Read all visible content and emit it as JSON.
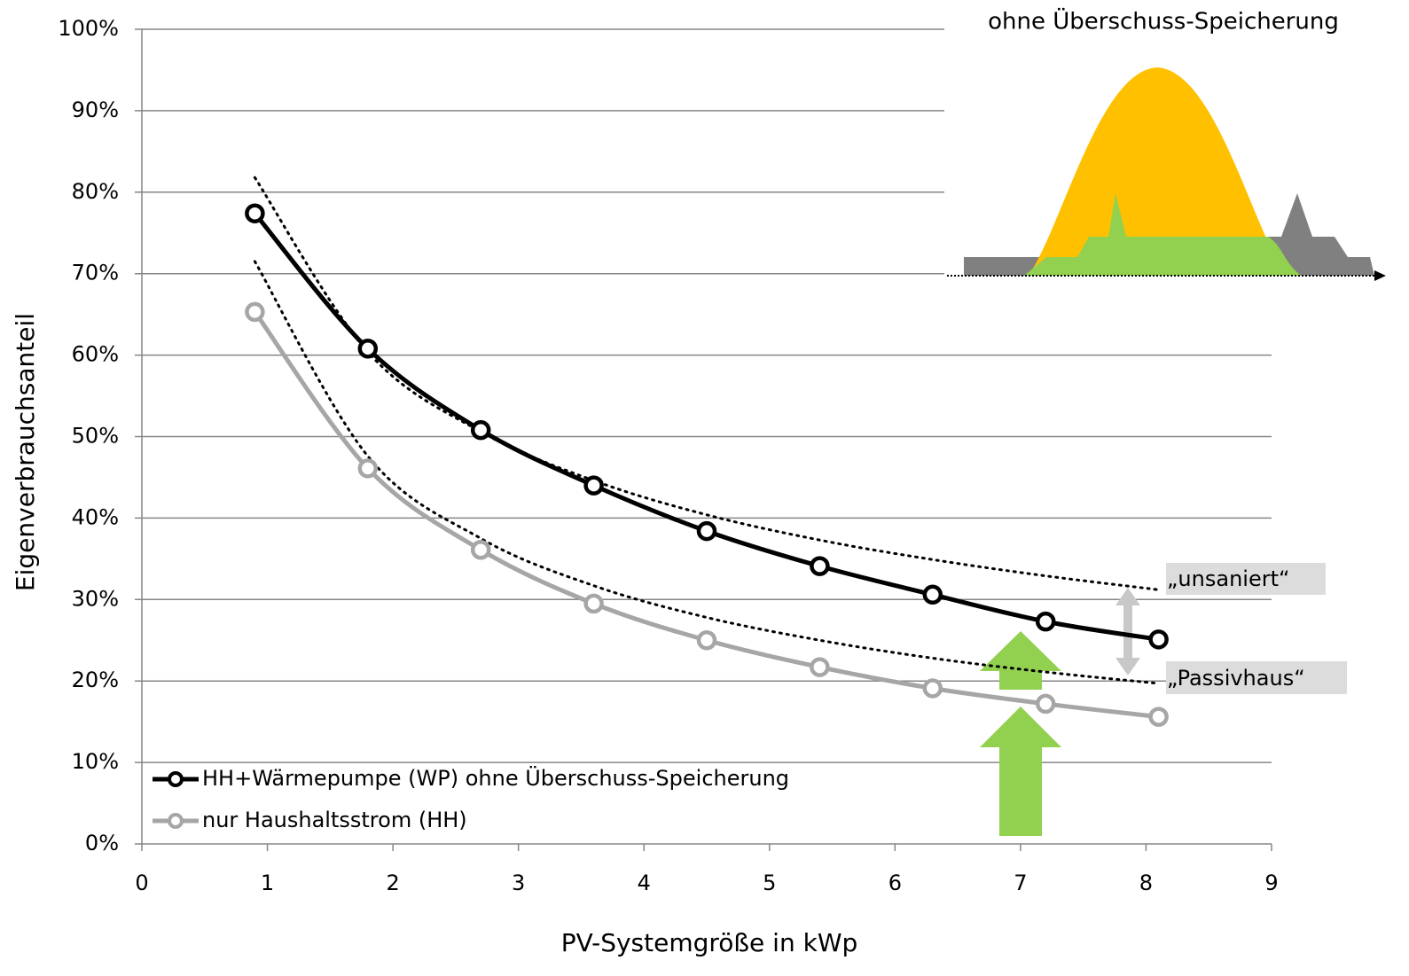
{
  "chart_data": {
    "type": "line",
    "inset_title": "ohne Überschuss-Speicherung",
    "x_label": "PV-Systemgröße in kWp",
    "y_label": "Eigenverbrauchsanteil",
    "x": [
      0.9,
      1.8,
      2.7,
      3.6,
      4.5,
      5.4,
      6.3,
      7.2,
      8.1
    ],
    "series": [
      {
        "name": "HH+Wärmepumpe (WP) ohne Überschuss-Speicherung",
        "color": "#000000",
        "values": [
          77.4,
          60.8,
          50.8,
          44.0,
          38.4,
          34.1,
          30.6,
          27.3,
          25.1
        ]
      },
      {
        "name": "nur Haushaltsstrom (HH)",
        "color": "#a6a6a6",
        "values": [
          65.3,
          46.1,
          36.1,
          29.5,
          25.0,
          21.7,
          19.1,
          17.2,
          15.6
        ]
      }
    ],
    "reference_lines": [
      {
        "color": "#000000",
        "style": "dotted",
        "values": [
          81.8,
          60.4,
          50.6,
          44.6,
          40.4,
          37.3,
          34.9,
          32.9,
          31.2
        ]
      },
      {
        "color": "#000000",
        "style": "dotted",
        "values": [
          71.5,
          47.6,
          37.5,
          31.7,
          27.8,
          25.0,
          22.8,
          21.1,
          19.7
        ]
      }
    ],
    "annotations": [
      "„unsaniert“",
      "„Passivhaus“"
    ],
    "xlim": [
      0,
      9
    ],
    "xticks": [
      0,
      1,
      2,
      3,
      4,
      5,
      6,
      7,
      8,
      9
    ],
    "ylim": [
      0,
      100
    ],
    "yticks": [
      {
        "value": 0,
        "label": "0%"
      },
      {
        "value": 10,
        "label": "10%"
      },
      {
        "value": 20,
        "label": "20%"
      },
      {
        "value": 30,
        "label": "30%"
      },
      {
        "value": 40,
        "label": "40%"
      },
      {
        "value": 50,
        "label": "50%"
      },
      {
        "value": 60,
        "label": "60%"
      },
      {
        "value": 70,
        "label": "70%"
      },
      {
        "value": 80,
        "label": "80%"
      },
      {
        "value": 90,
        "label": "90%"
      },
      {
        "value": 100,
        "label": "100%"
      }
    ],
    "grid": true,
    "legend": "bottom-left"
  }
}
